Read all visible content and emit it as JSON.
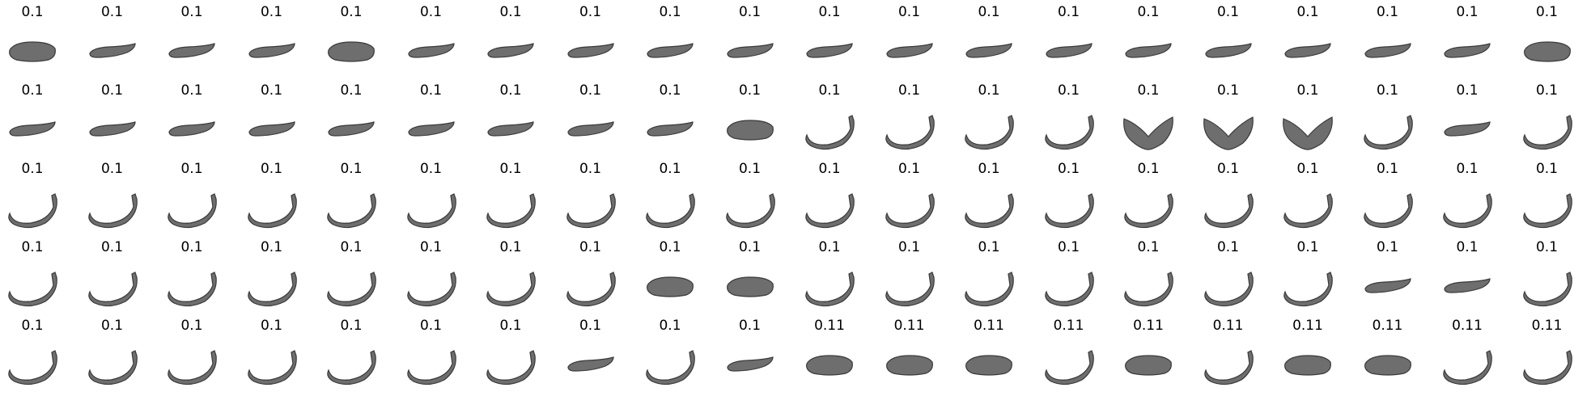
{
  "labels": [
    "0.1",
    "0.1",
    "0.1",
    "0.1",
    "0.1",
    "0.1",
    "0.1",
    "0.1",
    "0.1",
    "0.1",
    "0.1",
    "0.1",
    "0.1",
    "0.1",
    "0.1",
    "0.1",
    "0.1",
    "0.1",
    "0.1",
    "0.1",
    "0.1",
    "0.1",
    "0.1",
    "0.1",
    "0.1",
    "0.1",
    "0.1",
    "0.1",
    "0.1",
    "0.1",
    "0.1",
    "0.1",
    "0.1",
    "0.1",
    "0.1",
    "0.1",
    "0.1",
    "0.1",
    "0.1",
    "0.1",
    "0.1",
    "0.1",
    "0.1",
    "0.1",
    "0.1",
    "0.1",
    "0.1",
    "0.1",
    "0.1",
    "0.1",
    "0.1",
    "0.1",
    "0.1",
    "0.1",
    "0.1",
    "0.1",
    "0.1",
    "0.1",
    "0.1",
    "0.1",
    "0.1",
    "0.1",
    "0.1",
    "0.1",
    "0.1",
    "0.1",
    "0.1",
    "0.1",
    "0.1",
    "0.1",
    "0.1",
    "0.1",
    "0.1",
    "0.1",
    "0.1",
    "0.1",
    "0.1",
    "0.1",
    "0.1",
    "0.1",
    "0.1",
    "0.1",
    "0.1",
    "0.1",
    "0.1",
    "0.1",
    "0.1",
    "0.1",
    "0.1",
    "0.1",
    "0.11",
    "0.11",
    "0.11",
    "0.11",
    "0.11",
    "0.11",
    "0.11",
    "0.11",
    "0.11",
    "0.11"
  ],
  "shapes": [
    "blob",
    "straight",
    "straight",
    "straight",
    "blob",
    "straight",
    "straight",
    "straight",
    "straight",
    "straight",
    "straight",
    "straight",
    "straight",
    "straight",
    "straight",
    "straight",
    "straight",
    "straight",
    "straight",
    "blob",
    "straight",
    "straight",
    "straight",
    "straight",
    "straight",
    "straight",
    "straight",
    "straight",
    "straight",
    "blob",
    "curved",
    "curved",
    "curved",
    "curved",
    "vee",
    "vee",
    "vee",
    "curved",
    "straight",
    "curved",
    "curved",
    "curved",
    "curved",
    "curved",
    "curved",
    "curved",
    "curved",
    "curved",
    "curved",
    "curved",
    "curved",
    "curved",
    "curved",
    "curved",
    "curved",
    "curved",
    "curved",
    "curved",
    "curved",
    "curved",
    "curved",
    "curved",
    "curved",
    "curved",
    "curved",
    "curved",
    "curved",
    "curved",
    "blob",
    "blob",
    "curved",
    "curved",
    "curved",
    "curved",
    "curved",
    "curved",
    "curved",
    "straight",
    "straight",
    "curved",
    "curved",
    "curved",
    "curved",
    "curved",
    "curved",
    "curved",
    "curved",
    "straight",
    "curved",
    "straight",
    "blob",
    "blob",
    "blob",
    "curved",
    "blob",
    "curved",
    "blob",
    "blob",
    "curved",
    "curved"
  ],
  "colors": {
    "fill": "#6e6e6e",
    "dark": "#3a3a3a"
  }
}
